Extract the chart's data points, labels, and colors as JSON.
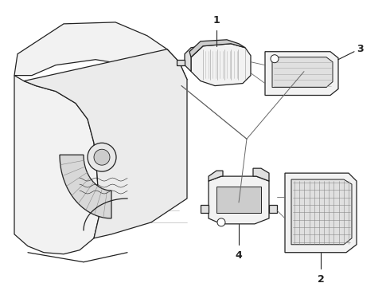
{
  "bg_color": "#ffffff",
  "lc": "#222222",
  "lw": 0.9,
  "lw_thin": 0.4,
  "gray_fill": "#f2f2f2",
  "gray_mid": "#e0e0e0",
  "gray_dark": "#cccccc"
}
